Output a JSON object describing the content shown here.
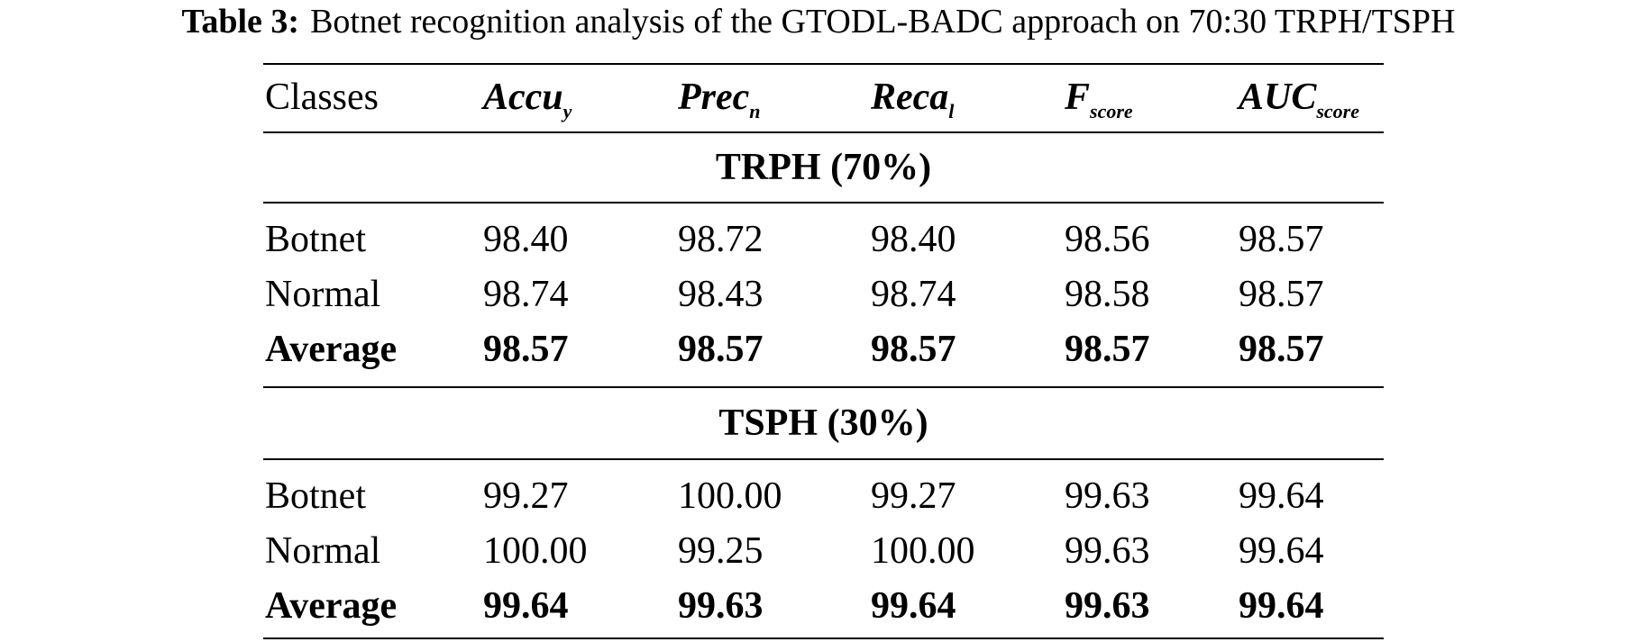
{
  "caption": {
    "label": "Table 3:",
    "text": "Botnet recognition analysis of the GTODL-BADC approach on 70:30 TRPH/TSPH"
  },
  "header": {
    "classes": "Classes",
    "accuracy": {
      "base": "Accu",
      "sub": "y"
    },
    "precision": {
      "base": "Prec",
      "sub": "n"
    },
    "recall": {
      "base": "Reca",
      "sub": "l"
    },
    "fscore": {
      "base": "F",
      "sub": "score"
    },
    "auc": {
      "base": "AUC",
      "sub": "score"
    }
  },
  "sections": [
    {
      "title": "TRPH (70%)",
      "rows": [
        {
          "class": "Botnet",
          "accuracy": "98.40",
          "precision": "98.72",
          "recall": "98.40",
          "fscore": "98.56",
          "auc": "98.57"
        },
        {
          "class": "Normal",
          "accuracy": "98.74",
          "precision": "98.43",
          "recall": "98.74",
          "fscore": "98.58",
          "auc": "98.57"
        },
        {
          "class": "Average",
          "accuracy": "98.57",
          "precision": "98.57",
          "recall": "98.57",
          "fscore": "98.57",
          "auc": "98.57"
        }
      ]
    },
    {
      "title": "TSPH (30%)",
      "rows": [
        {
          "class": "Botnet",
          "accuracy": "99.27",
          "precision": "100.00",
          "recall": "99.27",
          "fscore": "99.63",
          "auc": "99.64"
        },
        {
          "class": "Normal",
          "accuracy": "100.00",
          "precision": "99.25",
          "recall": "100.00",
          "fscore": "99.63",
          "auc": "99.64"
        },
        {
          "class": "Average",
          "accuracy": "99.64",
          "precision": "99.63",
          "recall": "99.64",
          "fscore": "99.63",
          "auc": "99.64"
        }
      ]
    }
  ]
}
